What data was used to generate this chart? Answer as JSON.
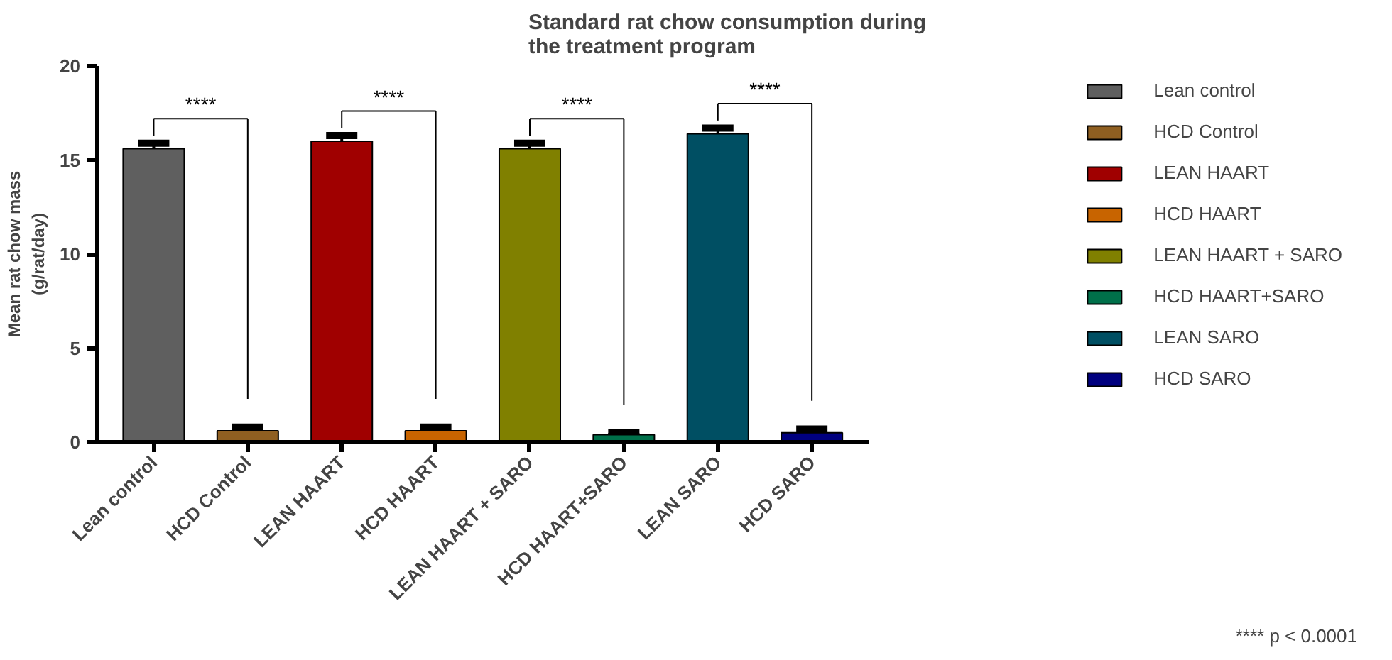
{
  "chart_data": {
    "type": "bar",
    "title": "Standard rat chow consumption during the treatment program",
    "ylabel": "Mean rat chow mass (g/rat/day)",
    "categories": [
      "Lean control",
      "HCD Control",
      "LEAN HAART",
      "HCD HAART",
      "LEAN HAART + SARO",
      "HCD HAART+SARO",
      "LEAN SARO",
      "HCD SARO"
    ],
    "series": [
      {
        "name": "Lean control",
        "color": "#5f5f5f",
        "values": [
          15.6,
          null,
          null,
          null,
          null,
          null,
          null,
          null
        ],
        "errors": [
          0.3,
          null,
          null,
          null,
          null,
          null,
          null,
          null
        ]
      },
      {
        "name": "HCD Control",
        "color": "#8f5f21",
        "values": [
          null,
          0.6,
          null,
          null,
          null,
          null,
          null,
          null
        ],
        "errors": [
          null,
          0.2,
          null,
          null,
          null,
          null,
          null,
          null
        ]
      },
      {
        "name": "LEAN HAART",
        "color": "#a00000",
        "values": [
          null,
          null,
          16.0,
          null,
          null,
          null,
          null,
          null
        ],
        "errors": [
          null,
          null,
          0.3,
          null,
          null,
          null,
          null,
          null
        ]
      },
      {
        "name": "HCD HAART",
        "color": "#c86400",
        "values": [
          null,
          null,
          null,
          0.6,
          null,
          null,
          null,
          null
        ],
        "errors": [
          null,
          null,
          null,
          0.2,
          null,
          null,
          null,
          null
        ]
      },
      {
        "name": "LEAN HAART + SARO",
        "color": "#808000",
        "values": [
          null,
          null,
          null,
          null,
          15.6,
          null,
          null,
          null
        ],
        "errors": [
          null,
          null,
          null,
          null,
          0.3,
          null,
          null,
          null
        ]
      },
      {
        "name": "HCD HAART+SARO",
        "color": "#00704a",
        "values": [
          null,
          null,
          null,
          null,
          null,
          0.4,
          null,
          null
        ],
        "errors": [
          null,
          null,
          null,
          null,
          null,
          0.1,
          null,
          null
        ]
      },
      {
        "name": "LEAN SARO",
        "color": "#004f63",
        "values": [
          null,
          null,
          null,
          null,
          null,
          null,
          16.4,
          null
        ],
        "errors": [
          null,
          null,
          null,
          null,
          null,
          null,
          0.3,
          null
        ]
      },
      {
        "name": "HCD SARO",
        "color": "#00007f",
        "values": [
          null,
          null,
          null,
          null,
          null,
          null,
          null,
          0.5
        ],
        "errors": [
          null,
          null,
          null,
          null,
          null,
          null,
          null,
          0.2
        ]
      }
    ],
    "ylim": [
      0,
      20
    ],
    "yticks": [
      0,
      5,
      10,
      15,
      20
    ],
    "legend": "right",
    "annotations": [
      "****",
      "****",
      "****",
      "****",
      "**** p < 0.0001"
    ]
  }
}
